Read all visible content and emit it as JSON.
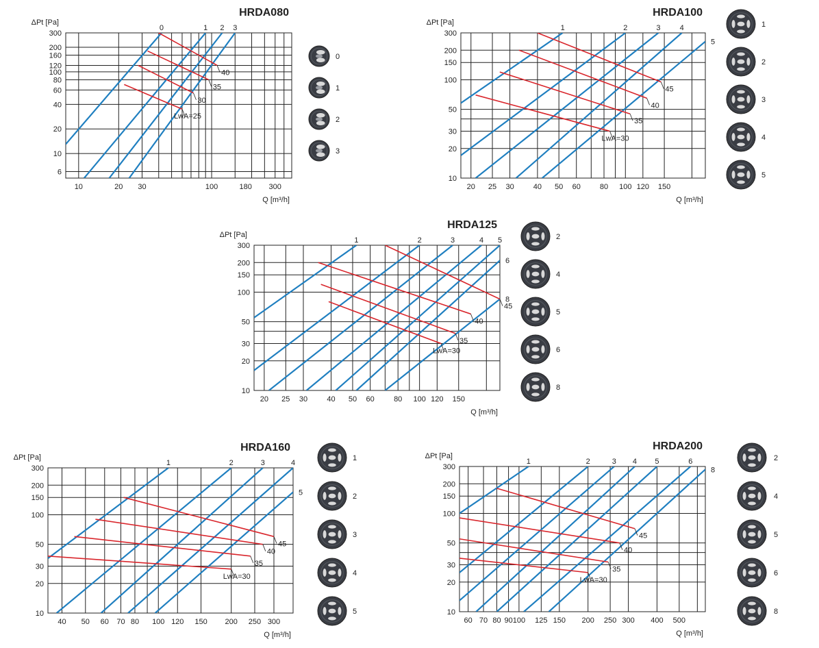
{
  "colors": {
    "setting_lines": "#1f7fc0",
    "noise_lines": "#d9262c",
    "grid": "#222222",
    "grille": "#3a3d44",
    "slot": "#d9d9d9"
  },
  "chart_data": [
    {
      "type": "line",
      "title": "HRDA080",
      "ylabel": "ΔPt [Pa]",
      "xlabel": "Q [m³/h]",
      "xscale": "log",
      "yscale": "log",
      "xlim": [
        8,
        400
      ],
      "ylim": [
        5,
        300
      ],
      "xticks": [
        10,
        20,
        30,
        100,
        180,
        300
      ],
      "xgrid": [
        10,
        20,
        30,
        40,
        50,
        60,
        70,
        80,
        90,
        100,
        150,
        200,
        250,
        300,
        350,
        400
      ],
      "yticks": [
        6,
        10,
        20,
        40,
        60,
        80,
        100,
        120,
        160,
        200,
        300
      ],
      "grid": true,
      "series": [
        {
          "name": "0",
          "type": "setting",
          "points": [
            [
              8,
              13
            ],
            [
              42,
              300
            ]
          ]
        },
        {
          "name": "1",
          "type": "setting",
          "points": [
            [
              11,
              5
            ],
            [
              90,
              300
            ]
          ]
        },
        {
          "name": "2",
          "type": "setting",
          "points": [
            [
              17,
              5
            ],
            [
              120,
              300
            ]
          ]
        },
        {
          "name": "3",
          "type": "setting",
          "points": [
            [
              24,
              5
            ],
            [
              150,
              300
            ]
          ]
        },
        {
          "name": "LwA=25",
          "type": "noise",
          "points": [
            [
              22,
              70
            ],
            [
              60,
              35
            ]
          ]
        },
        {
          "name": "30",
          "type": "noise",
          "points": [
            [
              28,
              120
            ],
            [
              73,
              55
            ]
          ]
        },
        {
          "name": "35",
          "type": "noise",
          "points": [
            [
              33,
              180
            ],
            [
              95,
              80
            ]
          ]
        },
        {
          "name": "40",
          "type": "noise",
          "points": [
            [
              40,
              300
            ],
            [
              110,
              120
            ]
          ]
        }
      ],
      "noise_labels": [
        "LwA=25",
        "30",
        "35",
        "40"
      ],
      "legend": [
        {
          "label": "0",
          "icon": "grille-setting-0-icon"
        },
        {
          "label": "1",
          "icon": "grille-setting-1-icon"
        },
        {
          "label": "2",
          "icon": "grille-setting-2-icon"
        },
        {
          "label": "3",
          "icon": "grille-setting-3-icon"
        }
      ]
    },
    {
      "type": "line",
      "title": "HRDA100",
      "ylabel": "ΔPt [Pa]",
      "xlabel": "Q [m³/h]",
      "xscale": "log",
      "yscale": "log",
      "xlim": [
        18,
        230
      ],
      "ylim": [
        10,
        300
      ],
      "xticks": [
        20,
        25,
        30,
        40,
        50,
        60,
        80,
        100,
        120,
        150
      ],
      "xgrid": [
        20,
        25,
        30,
        40,
        50,
        60,
        70,
        80,
        90,
        100,
        120,
        150,
        200
      ],
      "yticks": [
        10,
        20,
        30,
        50,
        100,
        150,
        200,
        300
      ],
      "ygrid": [
        10,
        20,
        30,
        40,
        50,
        100,
        150,
        200,
        300
      ],
      "grid": true,
      "series": [
        {
          "name": "1",
          "type": "setting",
          "points": [
            [
              18,
              58
            ],
            [
              52,
              300
            ]
          ]
        },
        {
          "name": "2",
          "type": "setting",
          "points": [
            [
              18,
              17
            ],
            [
              100,
              300
            ]
          ]
        },
        {
          "name": "3",
          "type": "setting",
          "points": [
            [
              21,
              10
            ],
            [
              141,
              300
            ]
          ]
        },
        {
          "name": "4",
          "type": "setting",
          "points": [
            [
              32,
              10
            ],
            [
              180,
              300
            ]
          ]
        },
        {
          "name": "5",
          "type": "setting",
          "points": [
            [
              42,
              10
            ],
            [
              230,
              245
            ]
          ]
        },
        {
          "name": "LwA=30",
          "type": "noise",
          "points": [
            [
              21,
              70
            ],
            [
              85,
              30
            ]
          ]
        },
        {
          "name": "35",
          "type": "noise",
          "points": [
            [
              27,
              120
            ],
            [
              105,
              45
            ]
          ]
        },
        {
          "name": "40",
          "type": "noise",
          "points": [
            [
              33,
              200
            ],
            [
              125,
              65
            ]
          ]
        },
        {
          "name": "45",
          "type": "noise",
          "points": [
            [
              40,
              300
            ],
            [
              145,
              95
            ]
          ]
        }
      ],
      "noise_labels": [
        "LwA=30",
        "35",
        "40",
        "45"
      ],
      "legend": [
        {
          "label": "1",
          "icon": "grille-setting-1-icon"
        },
        {
          "label": "2",
          "icon": "grille-setting-2-icon"
        },
        {
          "label": "3",
          "icon": "grille-setting-3-icon"
        },
        {
          "label": "4",
          "icon": "grille-setting-4-icon"
        },
        {
          "label": "5",
          "icon": "grille-setting-5-icon"
        }
      ]
    },
    {
      "type": "line",
      "title": "HRDA125",
      "ylabel": "ΔPt [Pa]",
      "xlabel": "Q [m³/h]",
      "xscale": "log",
      "yscale": "log",
      "xlim": [
        18,
        230
      ],
      "ylim": [
        10,
        300
      ],
      "xticks": [
        20,
        25,
        30,
        40,
        50,
        60,
        80,
        100,
        120,
        150
      ],
      "xgrid": [
        20,
        25,
        30,
        40,
        50,
        60,
        70,
        80,
        90,
        100,
        120,
        150,
        200
      ],
      "yticks": [
        10,
        20,
        30,
        50,
        100,
        150,
        200,
        300
      ],
      "ygrid": [
        10,
        20,
        30,
        40,
        50,
        100,
        150,
        200,
        300
      ],
      "grid": true,
      "series": [
        {
          "name": "1",
          "type": "setting",
          "points": [
            [
              18,
              55
            ],
            [
              52,
              300
            ]
          ]
        },
        {
          "name": "2",
          "type": "setting",
          "points": [
            [
              18,
              16
            ],
            [
              100,
              300
            ]
          ]
        },
        {
          "name": "3",
          "type": "setting",
          "points": [
            [
              21,
              10
            ],
            [
              141,
              300
            ]
          ]
        },
        {
          "name": "4",
          "type": "setting",
          "points": [
            [
              31,
              10
            ],
            [
              190,
              300
            ]
          ]
        },
        {
          "name": "5",
          "type": "setting",
          "points": [
            [
              42,
              10
            ],
            [
              230,
              300
            ]
          ]
        },
        {
          "name": "6",
          "type": "setting",
          "points": [
            [
              52,
              10
            ],
            [
              230,
              210
            ]
          ]
        },
        {
          "name": "8",
          "type": "setting",
          "points": [
            [
              70,
              10
            ],
            [
              230,
              85
            ]
          ]
        },
        {
          "name": "LwA=30",
          "type": "noise",
          "points": [
            [
              39,
              80
            ],
            [
              125,
              30
            ]
          ]
        },
        {
          "name": "35",
          "type": "noise",
          "points": [
            [
              36,
              120
            ],
            [
              145,
              38
            ]
          ]
        },
        {
          "name": "40",
          "type": "noise",
          "points": [
            [
              35,
              200
            ],
            [
              170,
              60
            ]
          ]
        },
        {
          "name": "45",
          "type": "noise",
          "points": [
            [
              70,
              300
            ],
            [
              230,
              85
            ]
          ]
        }
      ],
      "noise_labels": [
        "LwA=30",
        "35",
        "40",
        "45"
      ],
      "right_labels": [
        "6",
        "8"
      ],
      "legend": [
        {
          "label": "2",
          "icon": "grille-setting-2-icon"
        },
        {
          "label": "4",
          "icon": "grille-setting-4-icon"
        },
        {
          "label": "5",
          "icon": "grille-setting-5-icon"
        },
        {
          "label": "6",
          "icon": "grille-setting-6-icon"
        },
        {
          "label": "8",
          "icon": "grille-setting-8-icon"
        }
      ]
    },
    {
      "type": "line",
      "title": "HRDA160",
      "ylabel": "ΔPt [Pa]",
      "xlabel": "Q [m³/h]",
      "xscale": "log",
      "yscale": "log",
      "xlim": [
        35,
        360
      ],
      "ylim": [
        10,
        300
      ],
      "xticks": [
        40,
        50,
        60,
        70,
        80,
        100,
        120,
        150,
        200,
        250,
        300
      ],
      "xgrid": [
        40,
        50,
        60,
        70,
        80,
        90,
        100,
        120,
        150,
        200,
        250,
        300
      ],
      "yticks": [
        10,
        20,
        30,
        50,
        100,
        150,
        200,
        300
      ],
      "ygrid": [
        10,
        20,
        30,
        50,
        100,
        150,
        200,
        300
      ],
      "grid": true,
      "series": [
        {
          "name": "1",
          "type": "setting",
          "points": [
            [
              35,
              36
            ],
            [
              110,
              300
            ]
          ]
        },
        {
          "name": "2",
          "type": "setting",
          "points": [
            [
              38,
              10
            ],
            [
              200,
              300
            ]
          ]
        },
        {
          "name": "3",
          "type": "setting",
          "points": [
            [
              58,
              10
            ],
            [
              270,
              300
            ]
          ]
        },
        {
          "name": "4",
          "type": "setting",
          "points": [
            [
              75,
              10
            ],
            [
              360,
              300
            ]
          ]
        },
        {
          "name": "5",
          "type": "setting",
          "points": [
            [
              97,
              10
            ],
            [
              360,
              170
            ]
          ]
        },
        {
          "name": "LwA=30",
          "type": "noise",
          "points": [
            [
              35,
              38
            ],
            [
              200,
              28
            ]
          ]
        },
        {
          "name": "35",
          "type": "noise",
          "points": [
            [
              45,
              60
            ],
            [
              240,
              38
            ]
          ]
        },
        {
          "name": "40",
          "type": "noise",
          "points": [
            [
              55,
              90
            ],
            [
              270,
              50
            ]
          ]
        },
        {
          "name": "45",
          "type": "noise",
          "points": [
            [
              72,
              150
            ],
            [
              300,
              60
            ]
          ]
        }
      ],
      "noise_labels": [
        "LwA=30",
        "35",
        "40",
        "45"
      ],
      "legend": [
        {
          "label": "1",
          "icon": "grille-setting-1-icon"
        },
        {
          "label": "2",
          "icon": "grille-setting-2-icon"
        },
        {
          "label": "3",
          "icon": "grille-setting-3-icon"
        },
        {
          "label": "4",
          "icon": "grille-setting-4-icon"
        },
        {
          "label": "5",
          "icon": "grille-setting-5-icon"
        }
      ]
    },
    {
      "type": "line",
      "title": "HRDA200",
      "ylabel": "ΔPt [Pa]",
      "xlabel": "Q [m³/h]",
      "xscale": "log",
      "yscale": "log",
      "xlim": [
        55,
        650
      ],
      "ylim": [
        10,
        300
      ],
      "xticks": [
        60,
        70,
        80,
        90,
        100,
        125,
        150,
        200,
        250,
        300,
        400,
        500
      ],
      "xgrid": [
        60,
        70,
        80,
        90,
        100,
        125,
        150,
        200,
        250,
        300,
        400,
        500,
        600
      ],
      "yticks": [
        10,
        20,
        30,
        50,
        100,
        150,
        200,
        300
      ],
      "ygrid": [
        10,
        20,
        30,
        40,
        50,
        100,
        150,
        200,
        300
      ],
      "grid": true,
      "series": [
        {
          "name": "1",
          "type": "setting",
          "points": [
            [
              55,
              100
            ],
            [
              110,
              300
            ]
          ]
        },
        {
          "name": "2",
          "type": "setting",
          "points": [
            [
              55,
              25
            ],
            [
              200,
              300
            ]
          ]
        },
        {
          "name": "3",
          "type": "setting",
          "points": [
            [
              55,
              13
            ],
            [
              260,
              300
            ]
          ]
        },
        {
          "name": "4",
          "type": "setting",
          "points": [
            [
              65,
              10
            ],
            [
              320,
              300
            ]
          ]
        },
        {
          "name": "5",
          "type": "setting",
          "points": [
            [
              80,
              10
            ],
            [
              400,
              300
            ]
          ]
        },
        {
          "name": "6",
          "type": "setting",
          "points": [
            [
              105,
              10
            ],
            [
              560,
              300
            ]
          ]
        },
        {
          "name": "8",
          "type": "setting",
          "points": [
            [
              135,
              10
            ],
            [
              650,
              280
            ]
          ]
        },
        {
          "name": "LwA=30",
          "type": "noise",
          "points": [
            [
              55,
              35
            ],
            [
              200,
              25
            ]
          ]
        },
        {
          "name": "35",
          "type": "noise",
          "points": [
            [
              55,
              55
            ],
            [
              245,
              32
            ]
          ]
        },
        {
          "name": "40",
          "type": "noise",
          "points": [
            [
              55,
              90
            ],
            [
              275,
              50
            ]
          ]
        },
        {
          "name": "45",
          "type": "noise",
          "points": [
            [
              80,
              180
            ],
            [
              320,
              70
            ]
          ]
        }
      ],
      "noise_labels": [
        "LwA=30",
        "35",
        "40",
        "45"
      ],
      "right_labels": [
        "8"
      ],
      "legend": [
        {
          "label": "2",
          "icon": "grille-setting-2-icon"
        },
        {
          "label": "4",
          "icon": "grille-setting-4-icon"
        },
        {
          "label": "5",
          "icon": "grille-setting-5-icon"
        },
        {
          "label": "6",
          "icon": "grille-setting-6-icon"
        },
        {
          "label": "8",
          "icon": "grille-setting-8-icon"
        }
      ]
    }
  ]
}
